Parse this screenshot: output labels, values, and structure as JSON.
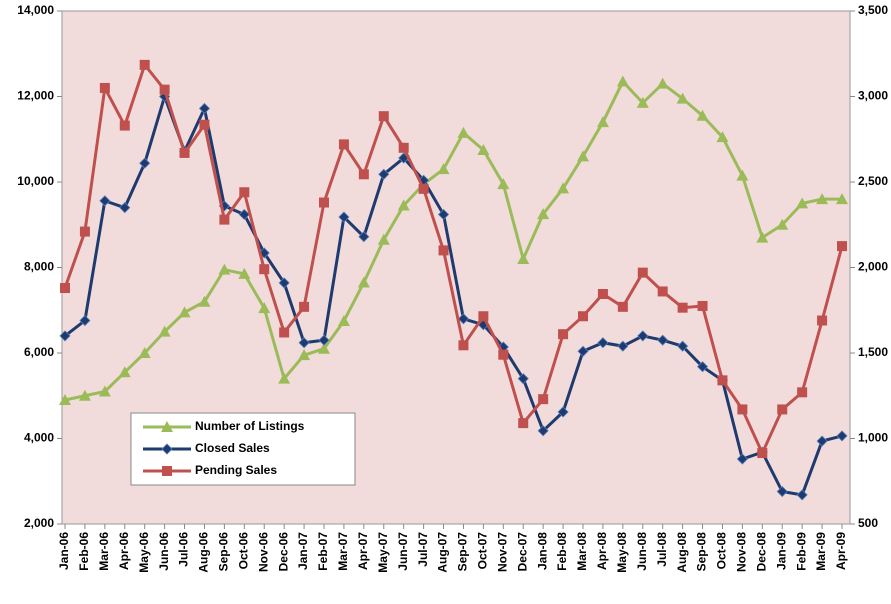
{
  "chart_data": {
    "type": "line",
    "categories": [
      "Jan-06",
      "Feb-06",
      "Mar-06",
      "Apr-06",
      "May-06",
      "Jun-06",
      "Jul-06",
      "Aug-06",
      "Sep-06",
      "Oct-06",
      "Nov-06",
      "Dec-06",
      "Jan-07",
      "Feb-07",
      "Mar-07",
      "Apr-07",
      "May-07",
      "Jun-07",
      "Jul-07",
      "Aug-07",
      "Sep-07",
      "Oct-07",
      "Nov-07",
      "Dec-07",
      "Jan-08",
      "Feb-08",
      "Mar-08",
      "Apr-08",
      "May-08",
      "Jun-08",
      "Jul-08",
      "Aug-08",
      "Sep-08",
      "Oct-08",
      "Nov-08",
      "Dec-08",
      "Jan-09",
      "Feb-09",
      "Mar-09",
      "Apr-09"
    ],
    "series": [
      {
        "name": "Number of Listings",
        "color": "#9bbb59",
        "marker": "triangle",
        "axis": "y",
        "values": [
          4900,
          5000,
          5100,
          5550,
          6000,
          6500,
          6950,
          7200,
          7950,
          7850,
          7050,
          5400,
          5950,
          6100,
          6750,
          7650,
          8650,
          9450,
          9950,
          10300,
          11150,
          10750,
          9950,
          8200,
          9250,
          9850,
          10600,
          11400,
          12350,
          11850,
          12300,
          11950,
          11550,
          11050,
          10150,
          8700,
          9000,
          9500,
          9600,
          9600
        ]
      },
      {
        "name": "Closed Sales",
        "color": "#1f3a6e",
        "marker": "diamond",
        "axis": "y2",
        "values": [
          1600,
          1690,
          2390,
          2350,
          2610,
          3000,
          2680,
          2930,
          2360,
          2310,
          2085,
          1910,
          1560,
          1575,
          2295,
          2180,
          2545,
          2640,
          2510,
          2310,
          1700,
          1665,
          1535,
          1350,
          1045,
          1155,
          1510,
          1560,
          1540,
          1600,
          1575,
          1540,
          1420,
          1340,
          880,
          920,
          690,
          670,
          985,
          1015
        ]
      },
      {
        "name": "Pending Sales",
        "color": "#c0504d",
        "marker": "square",
        "axis": "y2",
        "values": [
          1880,
          2210,
          3050,
          2830,
          3185,
          3040,
          2670,
          2835,
          2280,
          2440,
          1990,
          1620,
          1770,
          2380,
          2720,
          2545,
          2885,
          2700,
          2460,
          2100,
          1545,
          1715,
          1490,
          1090,
          1230,
          1610,
          1715,
          1845,
          1770,
          1970,
          1860,
          1765,
          1775,
          1340,
          1170,
          915,
          1170,
          1270,
          1690,
          2125
        ]
      }
    ],
    "ylim": [
      2000,
      14000
    ],
    "yticks": [
      {
        "value": 2000,
        "label": "2,000"
      },
      {
        "value": 4000,
        "label": "4,000"
      },
      {
        "value": 6000,
        "label": "6,000"
      },
      {
        "value": 8000,
        "label": "8,000"
      },
      {
        "value": 10000,
        "label": "10,000"
      },
      {
        "value": 12000,
        "label": "12,000"
      },
      {
        "value": 14000,
        "label": "14,000"
      }
    ],
    "y2lim": [
      500,
      3500
    ],
    "y2ticks": [
      500,
      {
        "value": 1000,
        "label": "1,000"
      },
      {
        "value": 1500,
        "label": "1,500"
      },
      {
        "value": 2000,
        "label": "2,000"
      },
      {
        "value": 2500,
        "label": "2,500"
      },
      {
        "value": 3000,
        "label": "3,000"
      },
      {
        "value": 3500,
        "label": "3,500"
      }
    ],
    "plot_background": "#f2dcdb"
  }
}
